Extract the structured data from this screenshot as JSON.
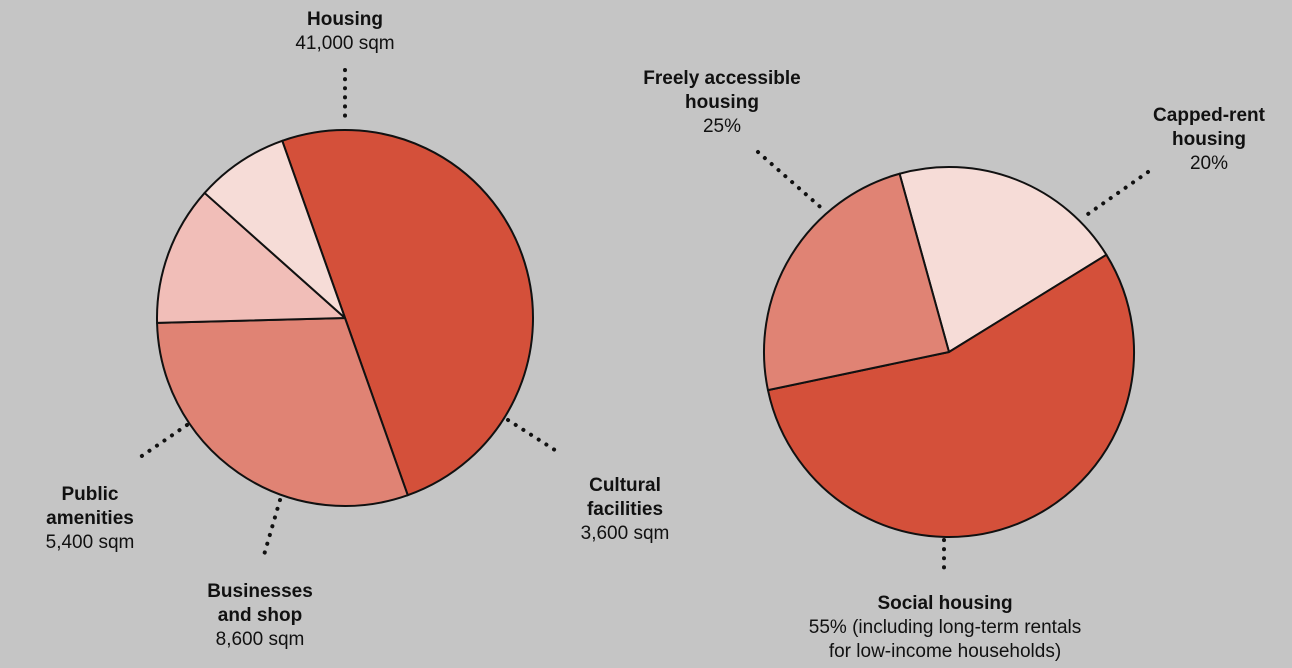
{
  "colors": {
    "background": "#c5c5c5",
    "slice_dark": "#d4503a",
    "slice_mid": "#e08374",
    "slice_light": "#f1beb8",
    "slice_pale": "#f6dcd7",
    "outline": "#111111"
  },
  "chart_data": [
    {
      "type": "pie",
      "unit": "sqm",
      "slices": [
        {
          "label": "Housing",
          "value": 41000,
          "value_text": "41,000 sqm",
          "color": "#d4503a"
        },
        {
          "label": "Cultural facilities",
          "value": 3600,
          "value_text": "3,600 sqm",
          "color": "#e08374"
        },
        {
          "label": "Businesses and shop",
          "value": 8600,
          "value_text": "8,600 sqm",
          "color": "#f1beb8"
        },
        {
          "label": "Public amenities",
          "value": 5400,
          "value_text": "5,400 sqm",
          "color": "#f6dcd7"
        }
      ]
    },
    {
      "type": "pie",
      "unit": "%",
      "slices": [
        {
          "label": "Capped-rent housing",
          "value": 20,
          "value_text": "20%",
          "color": "#f6dcd7"
        },
        {
          "label": "Social housing",
          "value": 55,
          "value_text": "55% (including long-term rentals for low-income households)",
          "color": "#d4503a"
        },
        {
          "label": "Freely accessible housing",
          "value": 25,
          "value_text": "25%",
          "color": "#e08374"
        }
      ]
    }
  ],
  "labels": {
    "housing": {
      "name": "Housing",
      "value": "41,000 sqm"
    },
    "cultural": {
      "name": "Cultural\nfacilities",
      "value": "3,600 sqm"
    },
    "business": {
      "name": "Businesses\nand shop",
      "value": "8,600 sqm"
    },
    "amenities": {
      "name": "Public\namenities",
      "value": "5,400 sqm"
    },
    "freely": {
      "name": "Freely accessible\nhousing",
      "value": "25%"
    },
    "capped": {
      "name": "Capped-rent\nhousing",
      "value": "20%"
    },
    "social": {
      "name": "Social housing",
      "value": "55% (including long-term rentals\nfor low-income households)"
    }
  }
}
